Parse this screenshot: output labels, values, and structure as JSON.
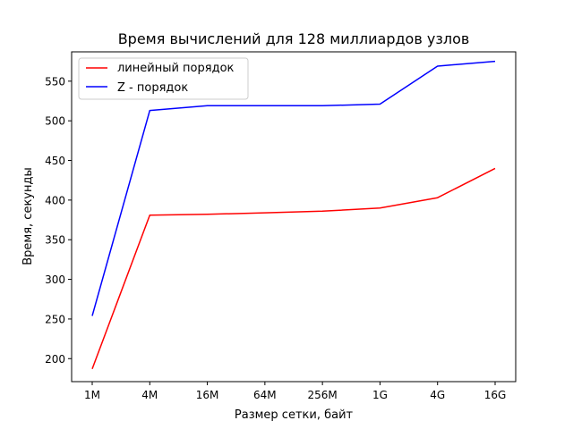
{
  "chart_data": {
    "type": "line",
    "title": "Время вычислений для 128 миллиардов узлов",
    "xlabel": "Размер сетки, байт",
    "ylabel": "Время, секунды",
    "categories": [
      "1M",
      "4M",
      "16M",
      "64M",
      "256M",
      "1G",
      "4G",
      "16G"
    ],
    "ylim": [
      171,
      587
    ],
    "yticks": [
      200,
      250,
      300,
      350,
      400,
      450,
      500,
      550
    ],
    "grid": false,
    "legend_position": "top-left",
    "series": [
      {
        "name": "линейный порядок",
        "color": "#ff0000",
        "values": [
          187,
          381,
          382,
          384,
          386,
          390,
          403,
          440
        ]
      },
      {
        "name": "Z - порядок",
        "color": "#0000ff",
        "values": [
          254,
          513,
          519,
          519,
          519,
          521,
          569,
          575
        ]
      }
    ]
  }
}
